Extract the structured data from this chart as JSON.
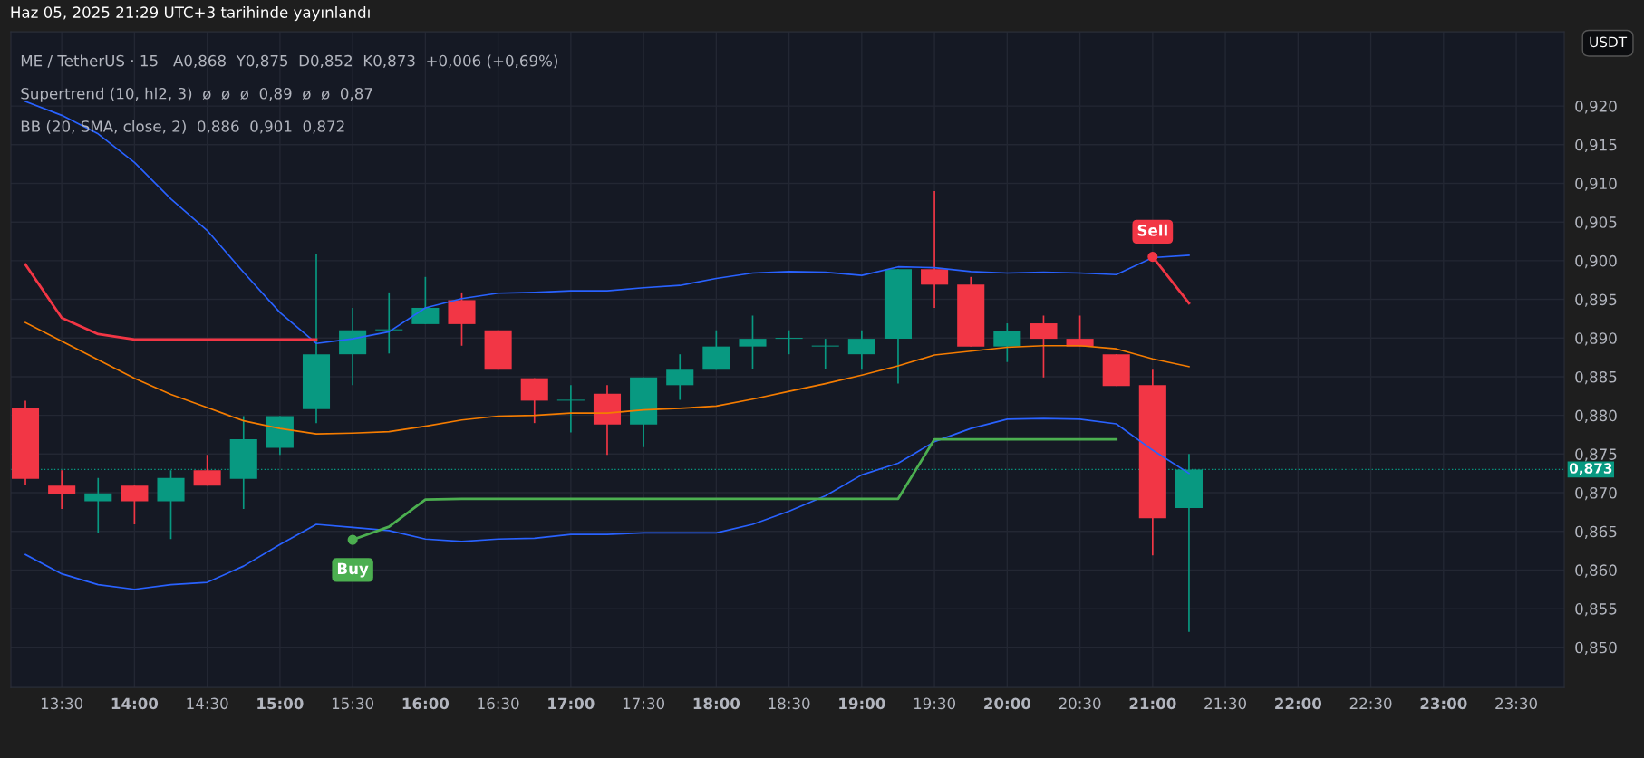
{
  "chart_data": {
    "type": "candlestick",
    "title": "Haz 05, 2025 21:29 UTC+3 tarihinde yayınlandı",
    "ylabel": "USDT",
    "x": [
      13.25,
      13.5,
      13.75,
      14.0,
      14.25,
      14.5,
      14.75,
      15.0,
      15.25,
      15.5,
      15.75,
      16.0,
      16.25,
      16.5,
      16.75,
      17.0,
      17.25,
      17.5,
      17.75,
      18.0,
      18.25,
      18.5,
      18.75,
      19.0,
      19.25,
      19.5,
      19.75,
      20.0,
      20.25,
      20.5,
      20.75,
      21.0,
      21.25
    ],
    "ohlc": [
      [
        0.8809,
        0.8819,
        0.871,
        0.8718
      ],
      [
        0.8709,
        0.8729,
        0.8679,
        0.8698
      ],
      [
        0.8689,
        0.8719,
        0.8648,
        0.8699
      ],
      [
        0.8709,
        0.8709,
        0.8659,
        0.8689
      ],
      [
        0.8689,
        0.8729,
        0.864,
        0.8719
      ],
      [
        0.8729,
        0.8749,
        0.8709,
        0.8709
      ],
      [
        0.8718,
        0.8799,
        0.8679,
        0.8769
      ],
      [
        0.8758,
        0.8799,
        0.8749,
        0.8799
      ],
      [
        0.8808,
        0.9009,
        0.879,
        0.8879
      ],
      [
        0.8879,
        0.8939,
        0.8839,
        0.891
      ],
      [
        0.891,
        0.8959,
        0.888,
        0.891
      ],
      [
        0.8918,
        0.8979,
        0.8918,
        0.8939
      ],
      [
        0.8949,
        0.8959,
        0.889,
        0.8918
      ],
      [
        0.891,
        0.891,
        0.8859,
        0.8859
      ],
      [
        0.8848,
        0.8848,
        0.879,
        0.8819
      ],
      [
        0.8819,
        0.8839,
        0.8778,
        0.8819
      ],
      [
        0.8828,
        0.8839,
        0.8749,
        0.8788
      ],
      [
        0.8788,
        0.8849,
        0.8759,
        0.8849
      ],
      [
        0.8839,
        0.8879,
        0.882,
        0.8859
      ],
      [
        0.8859,
        0.891,
        0.8859,
        0.8889
      ],
      [
        0.8889,
        0.8929,
        0.886,
        0.8899
      ],
      [
        0.8899,
        0.891,
        0.8879,
        0.8899
      ],
      [
        0.8889,
        0.8899,
        0.886,
        0.8889
      ],
      [
        0.8879,
        0.891,
        0.8859,
        0.8899
      ],
      [
        0.8899,
        0.8989,
        0.8841,
        0.8989
      ],
      [
        0.8989,
        0.909,
        0.8939,
        0.8969
      ],
      [
        0.8969,
        0.8979,
        0.8889,
        0.8889
      ],
      [
        0.8889,
        0.8919,
        0.8869,
        0.8909
      ],
      [
        0.8919,
        0.8929,
        0.8849,
        0.8899
      ],
      [
        0.8899,
        0.8929,
        0.8889,
        0.8889
      ],
      [
        0.8879,
        0.8879,
        0.8838,
        0.8838
      ],
      [
        0.8839,
        0.8859,
        0.8619,
        0.8667
      ],
      [
        0.868,
        0.875,
        0.852,
        0.873
      ]
    ],
    "series": [
      {
        "type": "line",
        "color": "#2962ff",
        "values": [
          0.9206,
          0.9188,
          0.9164,
          0.9127,
          0.908,
          0.9039,
          0.8985,
          0.8933,
          0.8893,
          0.8899,
          0.8908,
          0.8939,
          0.8951,
          0.8958,
          0.8959,
          0.8961,
          0.8961,
          0.8965,
          0.8968,
          0.8977,
          0.8984,
          0.8986,
          0.8985,
          0.8981,
          0.8992,
          0.8991,
          0.8986,
          0.8984,
          0.8985,
          0.8984,
          0.8982,
          0.9004,
          0.9007
        ]
      },
      {
        "type": "line",
        "color": "#2962ff",
        "values": [
          0.862,
          0.8595,
          0.8581,
          0.8575,
          0.8581,
          0.8584,
          0.8605,
          0.8633,
          0.8659,
          0.8655,
          0.8651,
          0.864,
          0.8637,
          0.864,
          0.8641,
          0.8646,
          0.8646,
          0.8648,
          0.8648,
          0.8648,
          0.8659,
          0.8676,
          0.8696,
          0.8723,
          0.8738,
          0.8766,
          0.8783,
          0.8795,
          0.8796,
          0.8795,
          0.8789,
          0.8755,
          0.8725
        ]
      },
      {
        "type": "line",
        "color": "#f57c00",
        "values": [
          0.892,
          0.8896,
          0.8872,
          0.8848,
          0.8827,
          0.881,
          0.8793,
          0.8783,
          0.8776,
          0.8777,
          0.8779,
          0.8786,
          0.8794,
          0.8799,
          0.88,
          0.8803,
          0.8803,
          0.8807,
          0.8809,
          0.8812,
          0.8821,
          0.8831,
          0.8841,
          0.8852,
          0.8864,
          0.8878,
          0.8883,
          0.8888,
          0.889,
          0.889,
          0.8886,
          0.8873,
          0.8863
        ]
      },
      {
        "type": "line",
        "color": "#f23645",
        "values": [
          0.8995,
          0.8926,
          0.8905,
          0.8898,
          0.8898,
          0.8898,
          0.8898,
          0.8898,
          0.8898,
          null,
          null,
          null,
          null,
          null,
          null,
          null,
          null,
          null,
          null,
          null,
          null,
          null,
          null,
          null,
          null,
          null,
          null,
          null,
          null,
          null,
          null,
          0.9005,
          0.8945
        ]
      },
      {
        "type": "line",
        "color": "#4caf50",
        "values": [
          null,
          null,
          null,
          null,
          null,
          null,
          null,
          null,
          null,
          0.8639,
          0.8656,
          0.8691,
          0.8692,
          0.8692,
          0.8692,
          0.8692,
          0.8692,
          0.8692,
          0.8692,
          0.8692,
          0.8692,
          0.8692,
          0.8692,
          0.8692,
          0.8692,
          0.8769,
          0.8769,
          0.8769,
          0.8769,
          0.8769,
          0.8769,
          null,
          null
        ]
      }
    ],
    "xlim": [
      13.15,
      23.83
    ],
    "xticks": [
      {
        "value": 13.5,
        "label": "13:30"
      },
      {
        "value": 14.0,
        "label": "14:00"
      },
      {
        "value": 14.5,
        "label": "14:30"
      },
      {
        "value": 15.0,
        "label": "15:00"
      },
      {
        "value": 15.5,
        "label": "15:30"
      },
      {
        "value": 16.0,
        "label": "16:00"
      },
      {
        "value": 16.5,
        "label": "16:30"
      },
      {
        "value": 17.0,
        "label": "17:00"
      },
      {
        "value": 17.5,
        "label": "17:30"
      },
      {
        "value": 18.0,
        "label": "18:00"
      },
      {
        "value": 18.5,
        "label": "18:30"
      },
      {
        "value": 19.0,
        "label": "19:00"
      },
      {
        "value": 19.5,
        "label": "19:30"
      },
      {
        "value": 20.0,
        "label": "20:00"
      },
      {
        "value": 20.5,
        "label": "20:30"
      },
      {
        "value": 21.0,
        "label": "21:00"
      },
      {
        "value": 21.5,
        "label": "21:30"
      },
      {
        "value": 22.0,
        "label": "22:00"
      },
      {
        "value": 22.5,
        "label": "22:30"
      },
      {
        "value": 23.0,
        "label": "23:00"
      },
      {
        "value": 23.5,
        "label": "23:30"
      }
    ],
    "ylim": [
      0.8448,
      0.9296
    ],
    "yticks": [
      {
        "value": 0.85,
        "label": "0,850"
      },
      {
        "value": 0.855,
        "label": "0,855"
      },
      {
        "value": 0.86,
        "label": "0,860"
      },
      {
        "value": 0.865,
        "label": "0,865"
      },
      {
        "value": 0.87,
        "label": "0,870"
      },
      {
        "value": 0.875,
        "label": "0,875"
      },
      {
        "value": 0.88,
        "label": "0,880"
      },
      {
        "value": 0.885,
        "label": "0,885"
      },
      {
        "value": 0.89,
        "label": "0,890"
      },
      {
        "value": 0.895,
        "label": "0,895"
      },
      {
        "value": 0.9,
        "label": "0,900"
      },
      {
        "value": 0.905,
        "label": "0,905"
      },
      {
        "value": 0.91,
        "label": "0,910"
      },
      {
        "value": 0.915,
        "label": "0,915"
      },
      {
        "value": 0.92,
        "label": "0,920"
      }
    ],
    "grid": true,
    "ref_lines": [
      {
        "axis": "y",
        "value": 0.873,
        "label": "0,873",
        "color": "#089981",
        "line_style": "dotted"
      }
    ],
    "annotations": [
      "ME / TetherUS · 15   A0,868  Y0,875  D0,852  K0,873  +0,006 (+0,69%)",
      "Supertrend (10, hl2, 3)  ø  ø  ø  0,89  ø  ø  0,87",
      "BB (20, SMA, close, 2)  0,886  0,901  0,872",
      {
        "text": "Buy",
        "x": 15.5,
        "y": 0.8639
      },
      {
        "text": "Sell",
        "x": 21.0,
        "y": 0.9005
      }
    ]
  }
}
